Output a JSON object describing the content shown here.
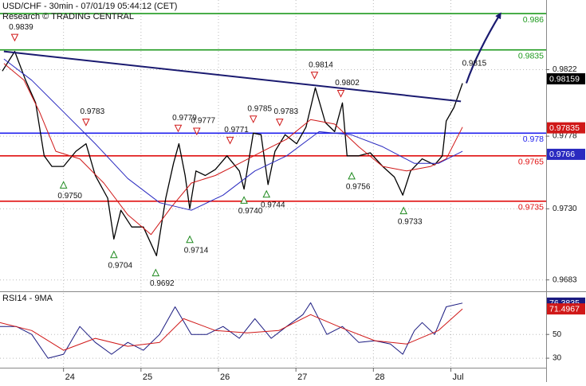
{
  "header": {
    "title": "USD/CHF - 30min - 07/01/19 05:44:12 (CET)",
    "source": "Research © TRADING CENTRAL"
  },
  "chart_data": [
    {
      "type": "price",
      "xlim": [
        23.18,
        30.23
      ],
      "ylim": [
        0.9676,
        0.9868
      ],
      "yticks": [
        0.9822,
        0.9778,
        {
          "value": 0.973,
          "label": "0.9730"
        },
        0.9683
      ],
      "grid": true,
      "series": [
        {
          "color": "#000000",
          "x": [
            23.21,
            23.37,
            23.51,
            23.64,
            23.75,
            23.85,
            24.0,
            24.16,
            24.29,
            24.41,
            24.57,
            24.65,
            24.74,
            24.88,
            25.03,
            25.2,
            25.32,
            25.42,
            25.49,
            25.57,
            25.63,
            25.71,
            25.83,
            25.96,
            26.11,
            26.27,
            26.33,
            26.45,
            26.55,
            26.64,
            26.73,
            26.86,
            27.01,
            27.13,
            27.25,
            27.38,
            27.5,
            27.6,
            27.66,
            27.81,
            27.96,
            28.12,
            28.27,
            28.38,
            28.48,
            28.63,
            28.79,
            28.89,
            28.94,
            29.04,
            29.15
          ],
          "values": [
            0.9821,
            0.9834,
            0.9815,
            0.98,
            0.9765,
            0.9758,
            0.9758,
            0.9768,
            0.9773,
            0.9752,
            0.9737,
            0.971,
            0.9729,
            0.9718,
            0.9718,
            0.9699,
            0.9737,
            0.976,
            0.9773,
            0.9752,
            0.973,
            0.9755,
            0.9752,
            0.9756,
            0.9765,
            0.9755,
            0.9743,
            0.978,
            0.9779,
            0.9746,
            0.9768,
            0.9779,
            0.9773,
            0.9784,
            0.981,
            0.9787,
            0.9781,
            0.98,
            0.9765,
            0.9765,
            0.9767,
            0.9758,
            0.9751,
            0.9739,
            0.9755,
            0.9763,
            0.9759,
            0.9765,
            0.9788,
            0.9797,
            0.9813
          ]
        },
        {
          "color": "#d01818",
          "x": [
            23.23,
            23.49,
            23.69,
            23.9,
            24.21,
            24.52,
            24.83,
            25.13,
            25.39,
            25.65,
            25.96,
            26.27,
            26.57,
            26.88,
            27.19,
            27.5,
            27.81,
            28.12,
            28.43,
            28.74,
            28.94,
            29.15
          ],
          "values": [
            0.9826,
            0.9815,
            0.9794,
            0.9768,
            0.9763,
            0.9747,
            0.9726,
            0.9713,
            0.9731,
            0.9747,
            0.9752,
            0.976,
            0.9768,
            0.9776,
            0.9789,
            0.9786,
            0.9771,
            0.9758,
            0.9755,
            0.9758,
            0.9763,
            0.9784
          ]
        },
        {
          "color": "#2a2ac0",
          "x": [
            23.23,
            23.59,
            24.0,
            24.41,
            24.83,
            25.24,
            25.65,
            26.06,
            26.47,
            26.88,
            27.3,
            27.71,
            28.12,
            28.53,
            28.84,
            29.15
          ],
          "values": [
            0.9829,
            0.9815,
            0.9794,
            0.9773,
            0.975,
            0.9734,
            0.9729,
            0.9739,
            0.9755,
            0.9765,
            0.9781,
            0.9779,
            0.9771,
            0.976,
            0.976,
            0.9768
          ]
        }
      ],
      "levels": [
        {
          "value": 0.9859,
          "label": "0.986",
          "color": "#1f9a1f"
        },
        {
          "value": 0.9835,
          "label": "0.9835",
          "color": "#1f9a1f"
        },
        {
          "value": 0.978,
          "label": "0.978",
          "color": "#2020ee"
        },
        {
          "value": 0.9765,
          "label": "0.9765",
          "color": "#e01010"
        },
        {
          "value": 0.9735,
          "label": "0.9735",
          "color": "#e01010"
        }
      ],
      "trendline": {
        "x": [
          23.23,
          29.13
        ],
        "values": [
          0.9834,
          0.9801
        ],
        "color": "#1a1a70"
      },
      "arrow": {
        "x": [
          29.2,
          29.64
        ],
        "values": [
          0.9813,
          0.9859
        ],
        "color": "#1a1a70"
      },
      "pivots": {
        "x": [
          23.37,
          24.29,
          24.0,
          24.65,
          25.19,
          25.63,
          25.48,
          25.72,
          26.15,
          26.33,
          26.45,
          26.62,
          26.79,
          27.24,
          27.58,
          27.72,
          28.39,
          29.22
        ],
        "values": [
          0.9839,
          0.9783,
          0.975,
          0.9704,
          0.9692,
          0.9714,
          0.9779,
          0.9777,
          0.9771,
          0.974,
          0.9785,
          0.9744,
          0.9783,
          0.9814,
          0.9802,
          0.9756,
          0.9733,
          0.9815
        ],
        "value_labels": [
          "0.9839",
          "0.9783",
          "0.9750",
          "0.9704",
          "0.9692",
          "0.9714",
          "0.9779",
          "0.9777",
          "0.9771",
          "0.9740",
          "0.9785",
          "0.9744",
          "0.9783",
          "0.9814",
          "0.9802",
          "0.9756",
          "0.9733",
          "0.9815"
        ],
        "directions": [
          "down",
          "down",
          "up",
          "up",
          "up",
          "up",
          "down",
          "down",
          "down",
          "up",
          "down",
          "up",
          "down",
          "down",
          "down",
          "up",
          "up",
          "none"
        ]
      },
      "last_values": {
        "values": [
          0.98159,
          0.97835,
          0.9766
        ],
        "colors": [
          "#000000",
          "#d01818",
          "#2a2ac0"
        ]
      }
    },
    {
      "type": "oscillator",
      "title": "RSI14 - 9MA",
      "xlim": [
        23.18,
        30.23
      ],
      "ylim": [
        22,
        85
      ],
      "xticks": [
        24,
        25,
        26,
        27,
        28,
        {
          "value": 29,
          "label": "Jul"
        }
      ],
      "yticks": [
        50,
        30
      ],
      "grid": true,
      "series": [
        {
          "color": "#1a1a80",
          "x": [
            23.18,
            23.39,
            23.59,
            23.8,
            24.0,
            24.21,
            24.41,
            24.62,
            24.83,
            25.03,
            25.24,
            25.44,
            25.65,
            25.85,
            26.06,
            26.27,
            26.47,
            26.68,
            26.88,
            27.09,
            27.19,
            27.4,
            27.6,
            27.81,
            28.02,
            28.22,
            28.38,
            28.53,
            28.63,
            28.79,
            28.94,
            29.15
          ],
          "values": [
            56.7,
            56.7,
            50,
            30,
            33.3,
            56.7,
            43.3,
            33.3,
            43.3,
            36.7,
            50,
            73.3,
            50,
            50,
            56.7,
            46.7,
            63.3,
            46.7,
            56.7,
            66.7,
            76.7,
            50,
            56.7,
            43.3,
            44.7,
            42,
            33.3,
            53.3,
            60,
            50,
            73.3,
            76.4
          ]
        },
        {
          "color": "#d01818",
          "x": [
            23.18,
            23.59,
            24.0,
            24.41,
            24.83,
            25.24,
            25.55,
            25.96,
            26.37,
            26.78,
            27.19,
            27.6,
            28.02,
            28.43,
            28.84,
            29.15
          ],
          "values": [
            60,
            53.3,
            36.7,
            46.7,
            40,
            43.3,
            63.3,
            53.3,
            51.3,
            53.3,
            66.7,
            55.3,
            44.7,
            42,
            53.3,
            71.5
          ]
        }
      ],
      "last_values": {
        "values": [
          76.3835,
          71.4967
        ],
        "colors": [
          "#1a1a80",
          "#d01818"
        ]
      }
    }
  ]
}
